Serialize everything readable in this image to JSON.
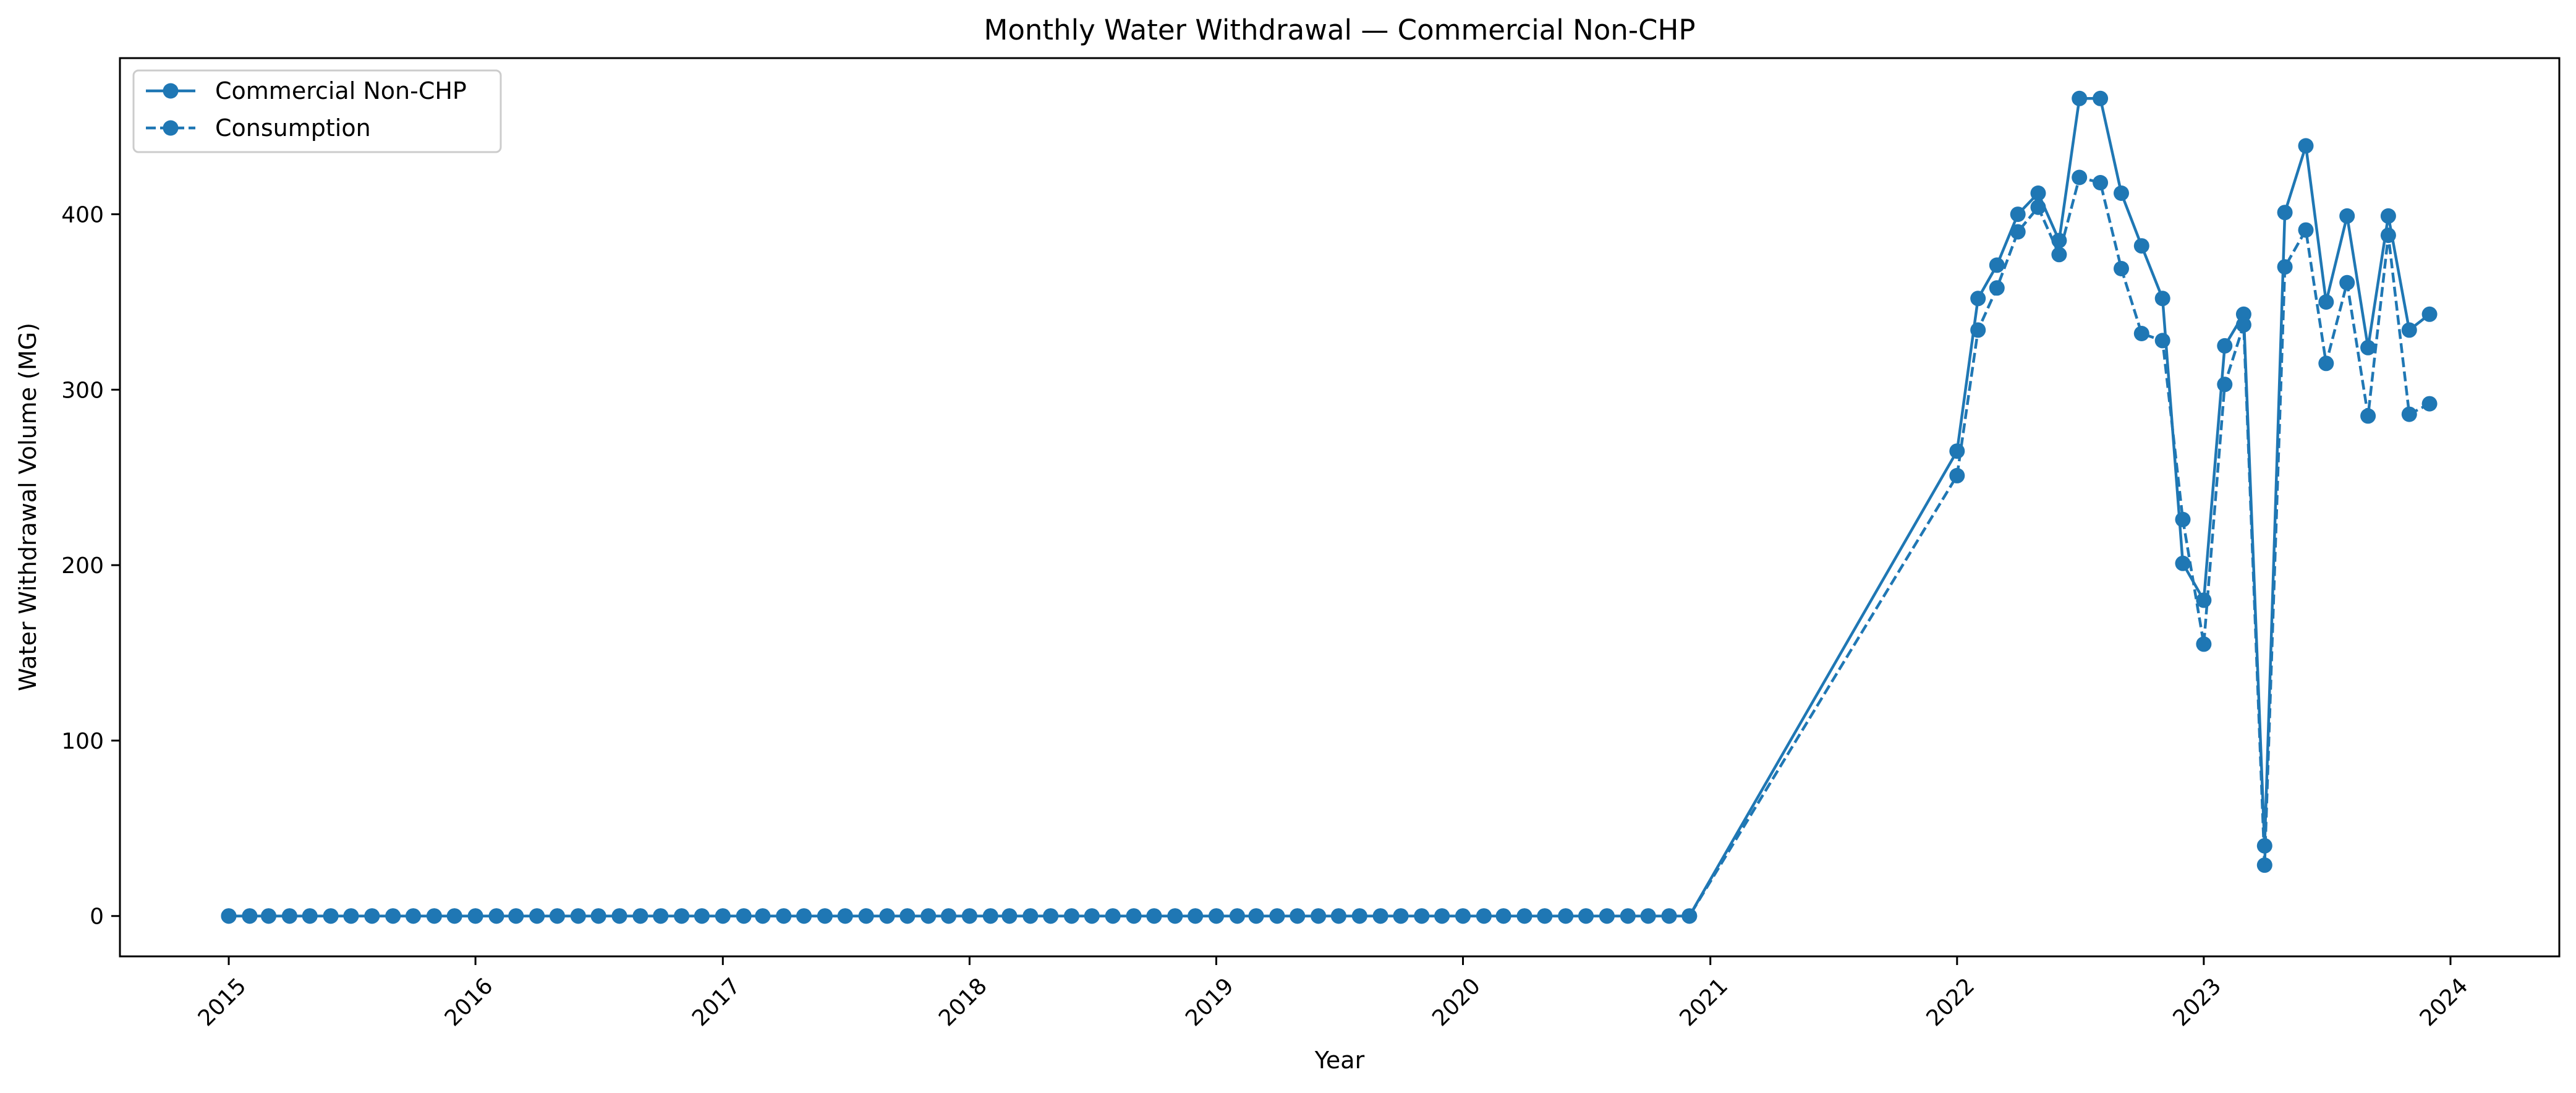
{
  "chart_data": {
    "type": "line",
    "title": "Monthly Water Withdrawal — Commercial Non-CHP",
    "xlabel": "Year",
    "ylabel": "Water Withdrawal Volume (MG)",
    "x_tick_labels": [
      "2015",
      "2016",
      "2017",
      "2018",
      "2019",
      "2020",
      "2021",
      "2022",
      "2023",
      "2024"
    ],
    "y_tick_labels": [
      "0",
      "100",
      "200",
      "300",
      "400"
    ],
    "xlim": [
      "2014-07-24",
      "2024-06-10"
    ],
    "ylim": [
      -23,
      489
    ],
    "grid": false,
    "legend_position": "upper-left",
    "color": "#1f77b4",
    "x": [
      "2015-01-01",
      "2015-02-01",
      "2015-03-01",
      "2015-04-01",
      "2015-05-01",
      "2015-06-01",
      "2015-07-01",
      "2015-08-01",
      "2015-09-01",
      "2015-10-01",
      "2015-11-01",
      "2015-12-01",
      "2016-01-01",
      "2016-02-01",
      "2016-03-01",
      "2016-04-01",
      "2016-05-01",
      "2016-06-01",
      "2016-07-01",
      "2016-08-01",
      "2016-09-01",
      "2016-10-01",
      "2016-11-01",
      "2016-12-01",
      "2017-01-01",
      "2017-02-01",
      "2017-03-01",
      "2017-04-01",
      "2017-05-01",
      "2017-06-01",
      "2017-07-01",
      "2017-08-01",
      "2017-09-01",
      "2017-10-01",
      "2017-11-01",
      "2017-12-01",
      "2018-01-01",
      "2018-02-01",
      "2018-03-01",
      "2018-04-01",
      "2018-05-01",
      "2018-06-01",
      "2018-07-01",
      "2018-08-01",
      "2018-09-01",
      "2018-10-01",
      "2018-11-01",
      "2018-12-01",
      "2019-01-01",
      "2019-02-01",
      "2019-03-01",
      "2019-04-01",
      "2019-05-01",
      "2019-06-01",
      "2019-07-01",
      "2019-08-01",
      "2019-09-01",
      "2019-10-01",
      "2019-11-01",
      "2019-12-01",
      "2020-01-01",
      "2020-02-01",
      "2020-03-01",
      "2020-04-01",
      "2020-05-01",
      "2020-06-01",
      "2020-07-01",
      "2020-08-01",
      "2020-09-01",
      "2020-10-01",
      "2020-11-01",
      "2020-12-01",
      "2022-01-01",
      "2022-02-01",
      "2022-03-01",
      "2022-04-01",
      "2022-05-01",
      "2022-06-01",
      "2022-07-01",
      "2022-08-01",
      "2022-09-01",
      "2022-10-01",
      "2022-11-01",
      "2022-12-01",
      "2023-01-01",
      "2023-02-01",
      "2023-03-01",
      "2023-04-01",
      "2023-05-01",
      "2023-06-01",
      "2023-07-01",
      "2023-08-01",
      "2023-09-01",
      "2023-10-01",
      "2023-11-01",
      "2023-12-01"
    ],
    "series": [
      {
        "name": "Commercial Non-CHP",
        "line_style": "solid",
        "marker": "circle",
        "values": [
          0,
          0,
          0,
          0,
          0,
          0,
          0,
          0,
          0,
          0,
          0,
          0,
          0,
          0,
          0,
          0,
          0,
          0,
          0,
          0,
          0,
          0,
          0,
          0,
          0,
          0,
          0,
          0,
          0,
          0,
          0,
          0,
          0,
          0,
          0,
          0,
          0,
          0,
          0,
          0,
          0,
          0,
          0,
          0,
          0,
          0,
          0,
          0,
          0,
          0,
          0,
          0,
          0,
          0,
          0,
          0,
          0,
          0,
          0,
          0,
          0,
          0,
          0,
          0,
          0,
          0,
          0,
          0,
          0,
          0,
          0,
          0,
          265,
          352,
          371,
          400,
          412,
          385,
          466,
          466,
          412,
          382,
          352,
          201,
          180,
          325,
          343,
          40,
          401,
          439,
          350,
          399,
          324,
          399,
          334,
          343
        ]
      },
      {
        "name": "Consumption",
        "line_style": "dashed",
        "marker": "circle",
        "values": [
          0,
          0,
          0,
          0,
          0,
          0,
          0,
          0,
          0,
          0,
          0,
          0,
          0,
          0,
          0,
          0,
          0,
          0,
          0,
          0,
          0,
          0,
          0,
          0,
          0,
          0,
          0,
          0,
          0,
          0,
          0,
          0,
          0,
          0,
          0,
          0,
          0,
          0,
          0,
          0,
          0,
          0,
          0,
          0,
          0,
          0,
          0,
          0,
          0,
          0,
          0,
          0,
          0,
          0,
          0,
          0,
          0,
          0,
          0,
          0,
          0,
          0,
          0,
          0,
          0,
          0,
          0,
          0,
          0,
          0,
          0,
          0,
          251,
          334,
          358,
          390,
          404,
          377,
          421,
          418,
          369,
          332,
          328,
          226,
          155,
          303,
          337,
          29,
          370,
          391,
          315,
          361,
          285,
          388,
          286,
          292
        ]
      }
    ]
  }
}
